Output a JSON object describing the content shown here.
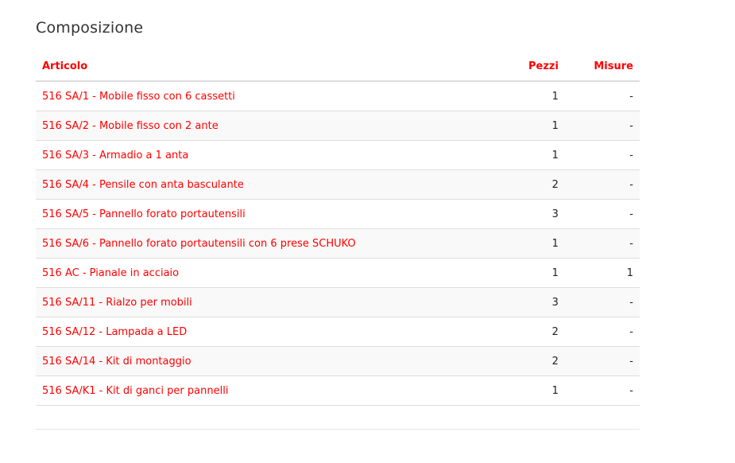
{
  "title": "Composizione",
  "columns": {
    "articolo": "Articolo",
    "pezzi": "Pezzi",
    "misure": "Misure"
  },
  "accent_color": "#ff0000",
  "rows": [
    {
      "articolo": "516 SA/1 - Mobile fisso con 6 cassetti",
      "pezzi": "1",
      "misure": "-"
    },
    {
      "articolo": "516 SA/2 - Mobile fisso con 2 ante",
      "pezzi": "1",
      "misure": "-"
    },
    {
      "articolo": "516 SA/3 - Armadio a 1 anta",
      "pezzi": "1",
      "misure": "-"
    },
    {
      "articolo": "516 SA/4 - Pensile con anta basculante",
      "pezzi": "2",
      "misure": "-"
    },
    {
      "articolo": "516 SA/5 - Pannello forato portautensili",
      "pezzi": "3",
      "misure": "-"
    },
    {
      "articolo": "516 SA/6 - Pannello forato portautensili con 6 prese SCHUKO",
      "pezzi": "1",
      "misure": "-"
    },
    {
      "articolo": "516 AC - Pianale in acciaio",
      "pezzi": "1",
      "misure": "1"
    },
    {
      "articolo": "516 SA/11 - Rialzo per mobili",
      "pezzi": "3",
      "misure": "-"
    },
    {
      "articolo": "516 SA/12 - Lampada a LED",
      "pezzi": "2",
      "misure": "-"
    },
    {
      "articolo": "516 SA/14 - Kit di montaggio",
      "pezzi": "2",
      "misure": "-"
    },
    {
      "articolo": "516 SA/K1 - Kit di ganci per pannelli",
      "pezzi": "1",
      "misure": "-"
    }
  ]
}
